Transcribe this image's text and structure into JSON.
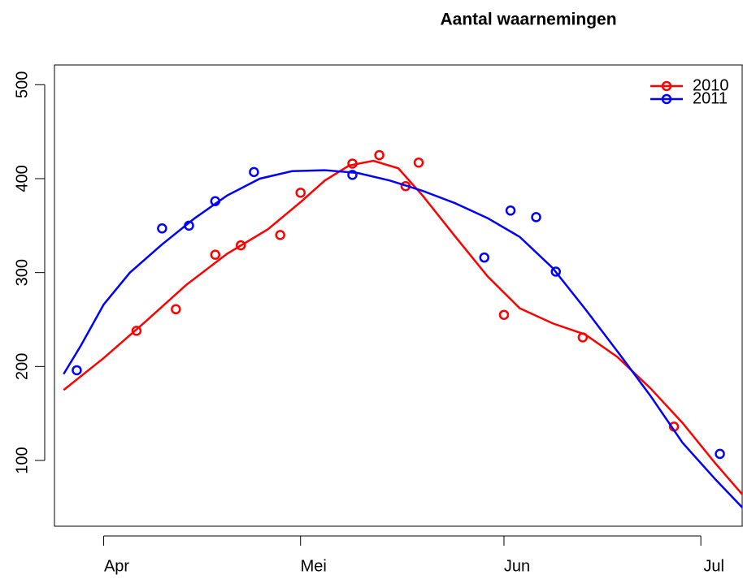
{
  "chart_data": {
    "type": "scatter-smooth",
    "title": "Aantal waarnemingen",
    "xlim": [
      -7.5,
      97.3
    ],
    "xticks": [
      {
        "value": 0,
        "label": "Apr"
      },
      {
        "value": 30,
        "label": "Mei"
      },
      {
        "value": 61,
        "label": "Jun"
      },
      {
        "value": 91,
        "label": "Jul"
      }
    ],
    "ylim": [
      30,
      521
    ],
    "yticks": [
      100,
      200,
      300,
      400,
      500
    ],
    "grid": false,
    "legend": "top-right",
    "series": [
      {
        "name": "2010",
        "color": "#ff0000",
        "x": [
          5.0,
          11.0,
          17.0,
          20.9,
          26.9,
          30.0,
          37.9,
          42.0,
          46.0,
          48.0,
          61.0,
          73.0,
          86.9
        ],
        "values": [
          238,
          261,
          319,
          329,
          340,
          385,
          416,
          425,
          392,
          417,
          255,
          231,
          136
        ],
        "fit_x": [
          -6.1,
          0,
          6.4,
          12.6,
          18.8,
          25.0,
          30,
          33.7,
          37.4,
          41.1,
          44.9,
          48.6,
          53.5,
          58.5,
          63.4,
          68.4,
          73.4,
          78.3,
          83.3,
          88.2,
          93.2,
          97.3
        ],
        "fit_values": [
          175,
          209,
          248,
          287,
          320,
          346,
          375,
          398,
          414,
          419,
          411,
          382,
          339,
          296,
          262,
          246,
          234,
          210,
          177,
          140,
          97,
          64
        ]
      },
      {
        "name": "2011",
        "color": "#0000ff",
        "x": [
          -4.1,
          8.9,
          13.0,
          17.0,
          22.9,
          37.9,
          58.0,
          62.0,
          65.9,
          68.9,
          93.9
        ],
        "values": [
          196,
          347,
          350,
          376,
          407,
          404,
          316,
          366,
          359,
          301,
          107
        ],
        "fit_x": [
          -6.1,
          -3.5,
          0,
          4.0,
          8.9,
          13.9,
          18.8,
          23.8,
          28.7,
          33.7,
          38.7,
          43.6,
          48.6,
          53.5,
          58.5,
          63.4,
          68.4,
          73.4,
          78.3,
          83.3,
          88.2,
          93.2,
          97.3
        ],
        "fit_values": [
          192,
          222,
          266,
          300,
          330,
          358,
          382,
          400,
          408,
          409,
          406,
          398,
          387,
          374,
          358,
          338,
          305,
          261,
          216,
          169,
          119,
          80,
          50
        ]
      }
    ]
  }
}
